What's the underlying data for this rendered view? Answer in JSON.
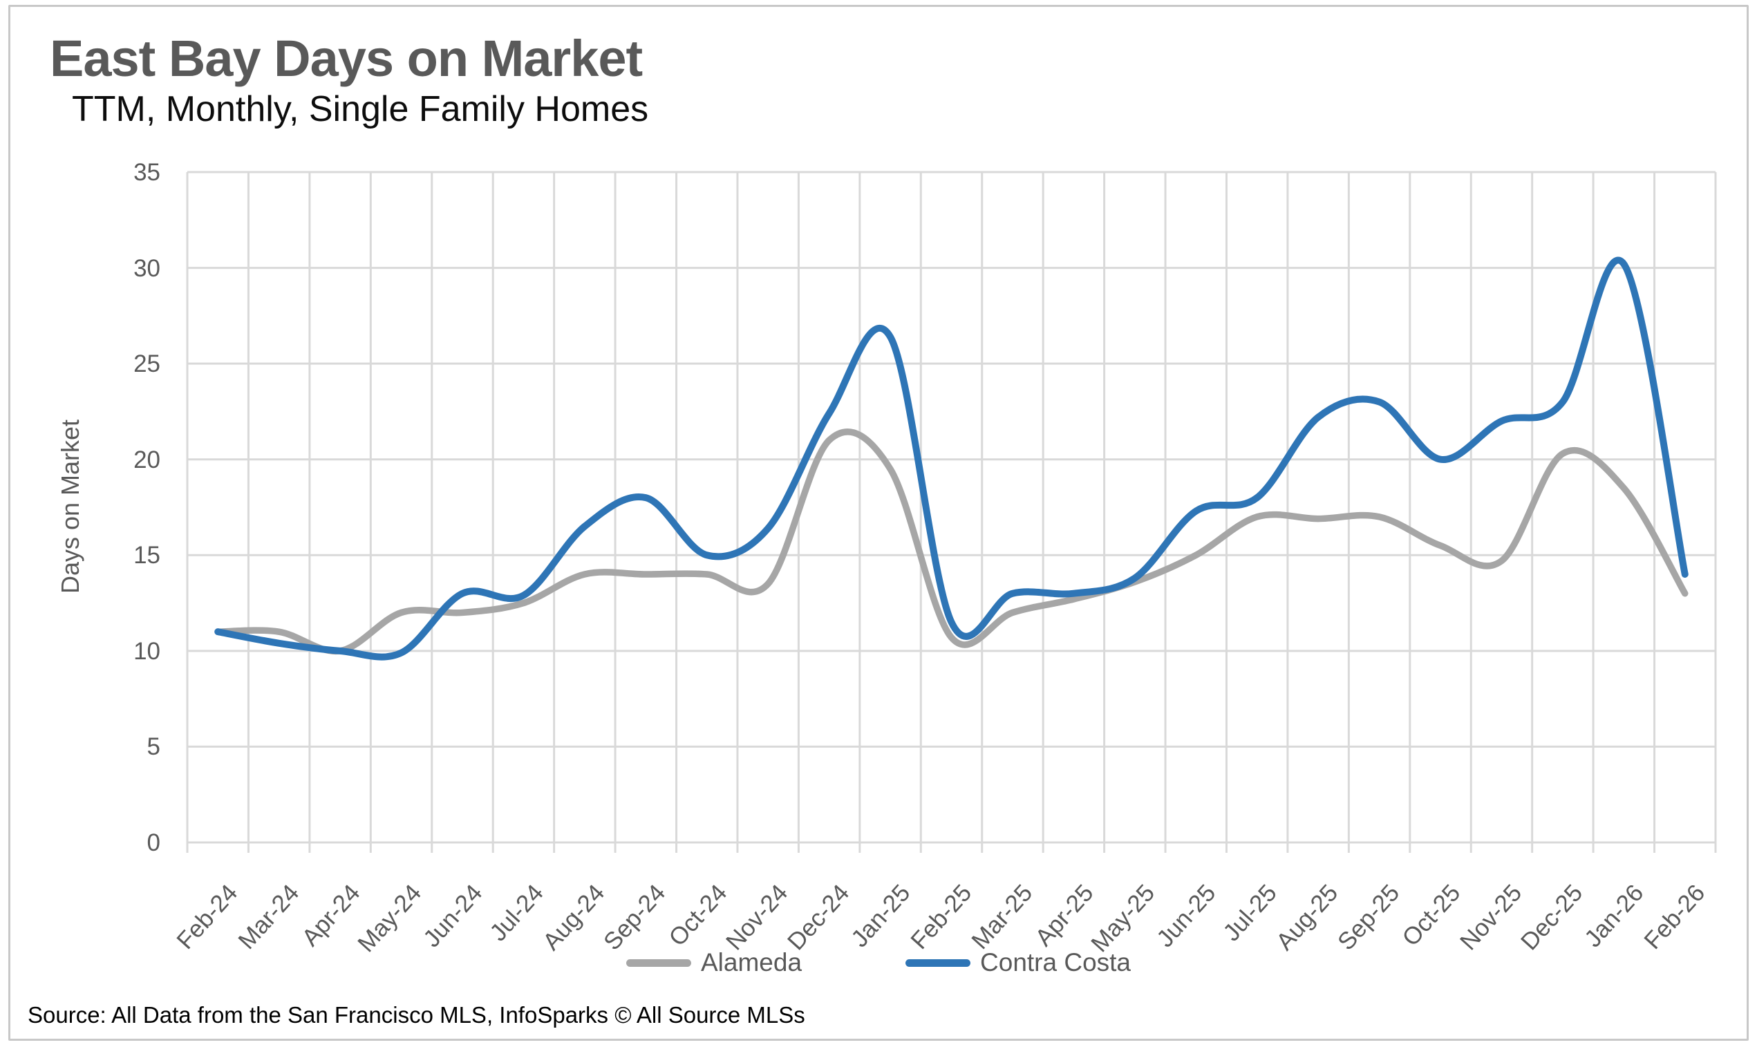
{
  "header": {
    "title": "East Bay Days on Market",
    "subtitle": "TTM, Monthly, Single Family Homes"
  },
  "y_axis": {
    "label": "Days on Market"
  },
  "footer": {
    "source": "Source: All Data from the San Francisco MLS, InfoSparks © All Source MLSs"
  },
  "colors": {
    "alameda_line": "#A6A6A6",
    "contra_costa_line": "#2E75B6",
    "gridline": "#D9D9D9",
    "axis_text": "#595959",
    "title_text": "#595959",
    "frame_border": "#C8C8C8"
  },
  "chart_data": {
    "type": "line",
    "title": "East Bay Days on Market",
    "subtitle": "TTM, Monthly, Single Family Homes",
    "xlabel": "",
    "ylabel": "Days on Market",
    "ylim": [
      0,
      35
    ],
    "ytick_step": 5,
    "y_ticks": [
      0,
      5,
      10,
      15,
      20,
      25,
      30,
      35
    ],
    "grid": true,
    "smooth": true,
    "legend_position": "bottom",
    "categories": [
      "Feb-24",
      "Mar-24",
      "Apr-24",
      "May-24",
      "Jun-24",
      "Jul-24",
      "Aug-24",
      "Sep-24",
      "Oct-24",
      "Nov-24",
      "Dec-24",
      "Jan-25",
      "Feb-25",
      "Mar-25",
      "Apr-25",
      "May-25",
      "Jun-25",
      "Jul-25",
      "Aug-25",
      "Sep-25",
      "Oct-25",
      "Nov-25",
      "Dec-25",
      "Jan-26",
      "Feb-26"
    ],
    "series": [
      {
        "name": "Alameda",
        "color": "#A6A6A6",
        "values": [
          11,
          11,
          10,
          12,
          12,
          12.5,
          14,
          14,
          14,
          13.5,
          21,
          19.5,
          10.7,
          12,
          12.7,
          13.6,
          15,
          17,
          16.9,
          17,
          15.5,
          14.7,
          20.3,
          18.5,
          13
        ]
      },
      {
        "name": "Contra Costa",
        "color": "#2E75B6",
        "values": [
          11,
          10.4,
          10,
          9.9,
          13,
          12.9,
          16.5,
          18,
          15,
          16.4,
          22.4,
          26.4,
          11.5,
          13,
          13,
          13.8,
          17.3,
          18,
          22.2,
          23,
          20,
          22,
          23,
          30.2,
          14
        ]
      }
    ]
  }
}
